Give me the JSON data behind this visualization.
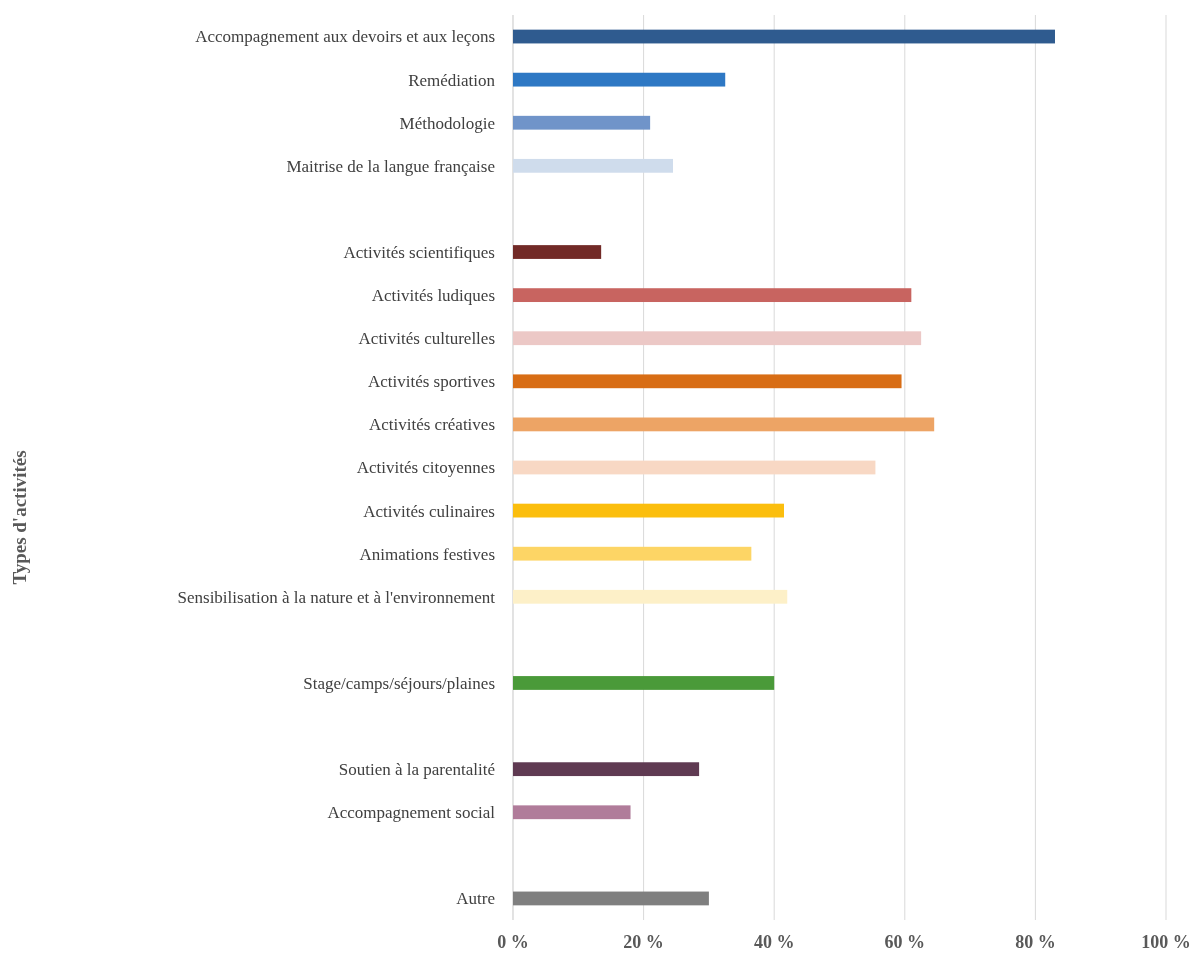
{
  "chart_data": {
    "type": "bar",
    "orientation": "horizontal",
    "annotations": [
      "Types d'activités"
    ],
    "categories": [
      "Accompagnement aux devoirs et aux leçons",
      "Remédiation",
      "Méthodologie",
      "Maitrise de la langue française",
      null,
      "Activités scientifiques",
      "Activités ludiques",
      "Activités culturelles",
      "Activités sportives",
      "Activités créatives",
      "Activités citoyennes",
      "Activités culinaires",
      "Animations festives",
      "Sensibilisation à la nature et à l'environnement",
      null,
      "Stage/camps/séjours/plaines",
      null,
      "Soutien à la parentalité",
      "Accompagnement social",
      null,
      "Autre"
    ],
    "values": [
      83,
      32.5,
      21,
      24.5,
      null,
      13.5,
      61,
      62.5,
      59.5,
      64.5,
      55.5,
      41.5,
      36.5,
      42,
      null,
      40,
      null,
      28.5,
      18,
      null,
      30
    ],
    "colors": [
      "#2f5b8f",
      "#2e78c4",
      "#7094c9",
      "#cfdcec",
      null,
      "#722a27",
      "#c86460",
      "#ecc8c6",
      "#d86d15",
      "#eda465",
      "#f8d8c4",
      "#fbbe0e",
      "#fdd565",
      "#fdf0c8",
      null,
      "#4a9a39",
      null,
      "#5f3a52",
      "#b07c9a",
      null,
      "#7f7f7f"
    ],
    "xlim": [
      0,
      100
    ],
    "xticks": [
      {
        "value": 0,
        "label": "0 %"
      },
      {
        "value": 20,
        "label": "20 %"
      },
      {
        "value": 40,
        "label": "40 %"
      },
      {
        "value": 60,
        "label": "60 %"
      },
      {
        "value": 80,
        "label": "80 %"
      },
      {
        "value": 100,
        "label": "100 %"
      }
    ],
    "grid": "x"
  }
}
